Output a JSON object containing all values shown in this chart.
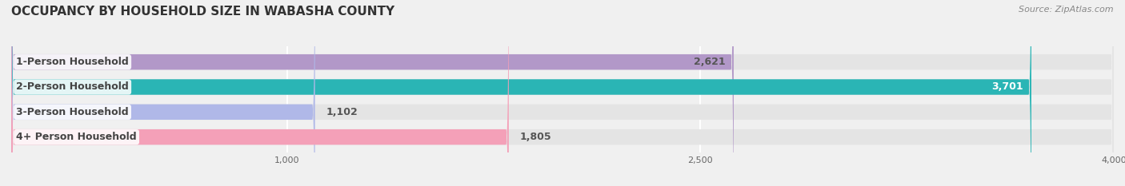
{
  "title": "OCCUPANCY BY HOUSEHOLD SIZE IN WABASHA COUNTY",
  "source": "Source: ZipAtlas.com",
  "categories": [
    "1-Person Household",
    "2-Person Household",
    "3-Person Household",
    "4+ Person Household"
  ],
  "values": [
    2621,
    3701,
    1102,
    1805
  ],
  "bar_colors": [
    "#b298c8",
    "#2ab5b5",
    "#b0b8e8",
    "#f4a0b8"
  ],
  "label_colors": [
    "#555555",
    "#ffffff",
    "#555555",
    "#555555"
  ],
  "xlim": [
    0,
    4000
  ],
  "xticks": [
    1000,
    2500,
    4000
  ],
  "bg_color": "#f0f0f0",
  "bar_bg_color": "#e4e4e4",
  "title_fontsize": 11,
  "label_fontsize": 9,
  "value_fontsize": 9,
  "source_fontsize": 8
}
